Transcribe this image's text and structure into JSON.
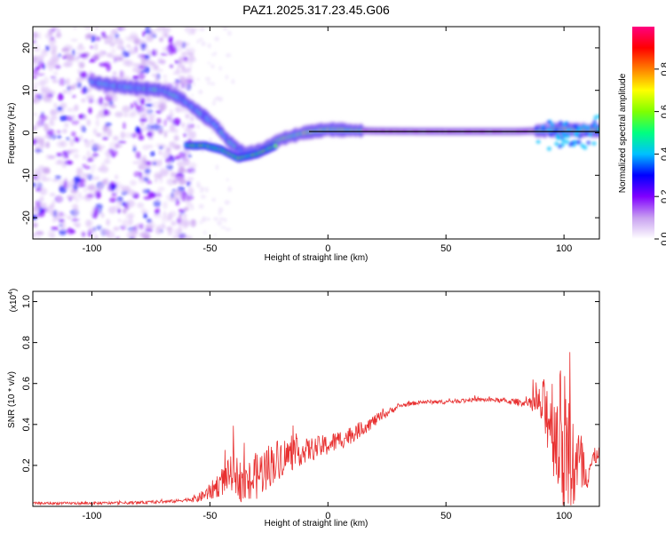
{
  "title": "PAZ1.2025.317.23.45.G06",
  "chart_data": [
    {
      "type": "heatmap",
      "xlabel": "Height of straight line (km)",
      "ylabel": "Frequency (Hz)",
      "xlim": [
        -125,
        115
      ],
      "ylim": [
        -25,
        25
      ],
      "xticks": [
        -100,
        -50,
        0,
        50,
        100
      ],
      "xtick_labels": [
        "-100",
        "-50",
        "0",
        "50",
        "100"
      ],
      "yticks": [
        -20,
        -10,
        0,
        10,
        20
      ],
      "ytick_labels": [
        "-20",
        "-10",
        "0",
        "10",
        "20"
      ],
      "colorbar": {
        "label": "Normalized spectral amplitude",
        "range": [
          0,
          1
        ],
        "ticks": [
          0.0,
          0.2,
          0.4,
          0.6,
          0.8
        ],
        "tick_labels": [
          "0.0",
          "0.2",
          "0.4",
          "0.6",
          "0.8"
        ],
        "colors": [
          "#ffffff",
          "#c8a0f0",
          "#8000ff",
          "#0000ff",
          "#00c0ff",
          "#00ff80",
          "#80ff00",
          "#ffff00",
          "#ff8000",
          "#ff0000",
          "#ff0080"
        ]
      },
      "ridge": [
        {
          "x": -100,
          "y": 12
        },
        {
          "x": -90,
          "y": 11
        },
        {
          "x": -80,
          "y": 10.5
        },
        {
          "x": -70,
          "y": 10
        },
        {
          "x": -62,
          "y": 8
        },
        {
          "x": -55,
          "y": 5
        },
        {
          "x": -48,
          "y": 2
        },
        {
          "x": -42,
          "y": -2
        },
        {
          "x": -35,
          "y": -5
        },
        {
          "x": -28,
          "y": -4
        },
        {
          "x": -20,
          "y": -1.5
        },
        {
          "x": -10,
          "y": 0
        },
        {
          "x": 0,
          "y": 0.8
        },
        {
          "x": 10,
          "y": 0.6
        },
        {
          "x": 20,
          "y": 0.4
        },
        {
          "x": 50,
          "y": 0.3
        },
        {
          "x": 80,
          "y": 0.3
        },
        {
          "x": 90,
          "y": 0.5
        },
        {
          "x": 100,
          "y": 0.8
        },
        {
          "x": 115,
          "y": 0.5
        }
      ],
      "lower_branch": [
        {
          "x": -60,
          "y": -3
        },
        {
          "x": -52,
          "y": -3
        },
        {
          "x": -45,
          "y": -4
        },
        {
          "x": -38,
          "y": -6
        },
        {
          "x": -30,
          "y": -5
        },
        {
          "x": -22,
          "y": -3
        }
      ]
    },
    {
      "type": "line",
      "xlabel": "Height of straight line (km)",
      "ylabel": "SNR (10 * v/v)",
      "yscale_label": "(x10",
      "yscale_exp": "4",
      "yscale_close": ")",
      "xlim": [
        -125,
        115
      ],
      "ylim": [
        0,
        1.05
      ],
      "xticks": [
        -100,
        -50,
        0,
        50,
        100
      ],
      "xtick_labels": [
        "-100",
        "-50",
        "0",
        "50",
        "100"
      ],
      "yticks": [
        0.2,
        0.4,
        0.6,
        0.8,
        1.0
      ],
      "ytick_labels": [
        "0.2",
        "0.4",
        "0.6",
        "0.8",
        "1.0"
      ],
      "line_color": "#e83030",
      "trend": [
        {
          "x": -125,
          "y": 0.015
        },
        {
          "x": -100,
          "y": 0.015
        },
        {
          "x": -80,
          "y": 0.018
        },
        {
          "x": -65,
          "y": 0.025
        },
        {
          "x": -55,
          "y": 0.04
        },
        {
          "x": -50,
          "y": 0.07
        },
        {
          "x": -45,
          "y": 0.12
        },
        {
          "x": -40,
          "y": 0.17
        },
        {
          "x": -35,
          "y": 0.1
        },
        {
          "x": -30,
          "y": 0.15
        },
        {
          "x": -25,
          "y": 0.2
        },
        {
          "x": -20,
          "y": 0.24
        },
        {
          "x": -10,
          "y": 0.27
        },
        {
          "x": 0,
          "y": 0.3
        },
        {
          "x": 10,
          "y": 0.35
        },
        {
          "x": 20,
          "y": 0.42
        },
        {
          "x": 30,
          "y": 0.49
        },
        {
          "x": 40,
          "y": 0.51
        },
        {
          "x": 50,
          "y": 0.51
        },
        {
          "x": 60,
          "y": 0.52
        },
        {
          "x": 70,
          "y": 0.52
        },
        {
          "x": 80,
          "y": 0.51
        },
        {
          "x": 88,
          "y": 0.5
        },
        {
          "x": 92,
          "y": 0.48
        },
        {
          "x": 96,
          "y": 0.4
        },
        {
          "x": 100,
          "y": 0.3
        },
        {
          "x": 104,
          "y": 0.2
        },
        {
          "x": 110,
          "y": 0.18
        },
        {
          "x": 115,
          "y": 0.27
        }
      ],
      "noise": [
        {
          "x": -125,
          "a": 0.006
        },
        {
          "x": -60,
          "a": 0.008
        },
        {
          "x": -52,
          "a": 0.03
        },
        {
          "x": -45,
          "a": 0.07
        },
        {
          "x": -38,
          "a": 0.1
        },
        {
          "x": -30,
          "a": 0.12
        },
        {
          "x": -20,
          "a": 0.1
        },
        {
          "x": -10,
          "a": 0.06
        },
        {
          "x": 5,
          "a": 0.05
        },
        {
          "x": 20,
          "a": 0.03
        },
        {
          "x": 30,
          "a": 0.01
        },
        {
          "x": 70,
          "a": 0.01
        },
        {
          "x": 85,
          "a": 0.02
        },
        {
          "x": 90,
          "a": 0.1
        },
        {
          "x": 95,
          "a": 0.25
        },
        {
          "x": 100,
          "a": 0.38
        },
        {
          "x": 105,
          "a": 0.25
        },
        {
          "x": 110,
          "a": 0.1
        },
        {
          "x": 115,
          "a": 0.02
        }
      ]
    }
  ]
}
